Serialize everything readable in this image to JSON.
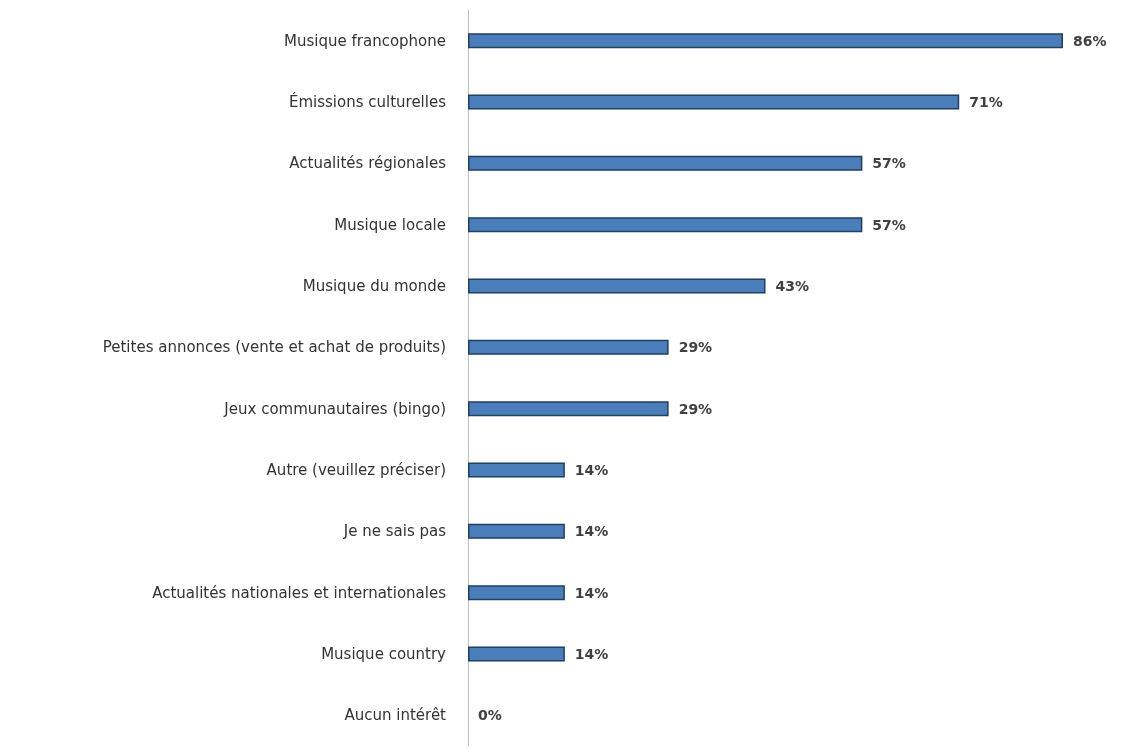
{
  "chart_data": {
    "type": "bar",
    "orientation": "horizontal",
    "categories": [
      "Musique francophone",
      "Émissions culturelles",
      "Actualités régionales",
      "Musique locale",
      "Musique du monde",
      "Petites annonces (vente et achat de produits)",
      "Jeux communautaires (bingo)",
      "Autre (veuillez préciser)",
      "Je ne sais pas",
      "Actualités nationales et internationales",
      "Musique country",
      "Aucun intérêt"
    ],
    "values": [
      86,
      71,
      57,
      57,
      43,
      29,
      29,
      14,
      14,
      14,
      14,
      0
    ],
    "value_labels": [
      "86%",
      "71%",
      "57%",
      "57%",
      "43%",
      "29%",
      "29%",
      "14%",
      "14%",
      "14%",
      "14%",
      "0%"
    ],
    "color": "#4a7ebb",
    "grid": false
  }
}
